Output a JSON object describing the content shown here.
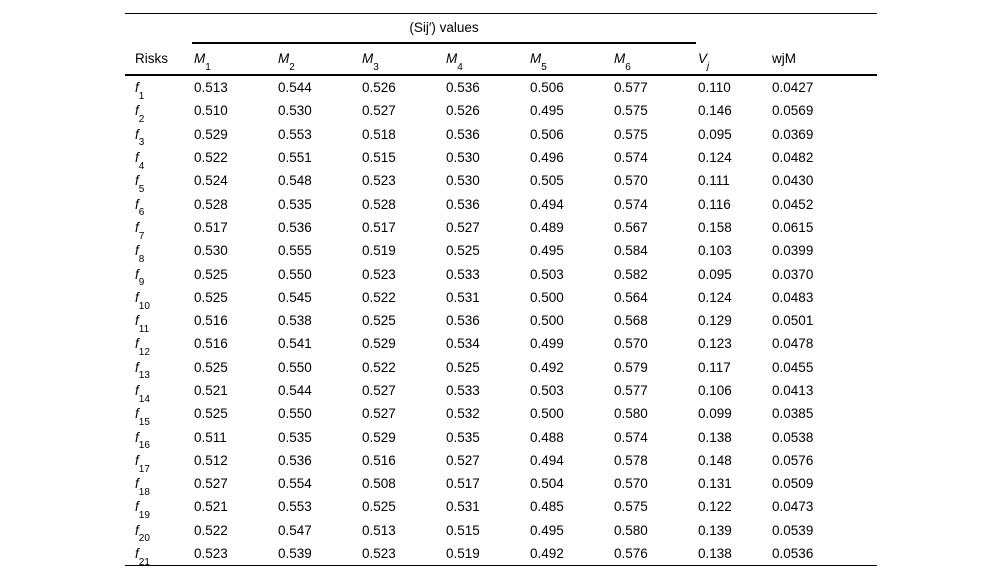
{
  "table": {
    "spanner_title": "(Sij′) values",
    "headers": {
      "risks": "Risks",
      "m_columns": [
        {
          "base": "M",
          "sub": "1"
        },
        {
          "base": "M",
          "sub": "2"
        },
        {
          "base": "M",
          "sub": "3"
        },
        {
          "base": "M",
          "sub": "4"
        },
        {
          "base": "M",
          "sub": "5"
        },
        {
          "base": "M",
          "sub": "6"
        }
      ],
      "v_column": {
        "base": "V",
        "sub": "j"
      },
      "w_column": "wjM"
    },
    "rows": [
      {
        "label": {
          "base": "f",
          "sub": "1"
        },
        "values": [
          "0.513",
          "0.544",
          "0.526",
          "0.536",
          "0.506",
          "0.577",
          "0.110",
          "0.0427"
        ]
      },
      {
        "label": {
          "base": "f",
          "sub": "2"
        },
        "values": [
          "0.510",
          "0.530",
          "0.527",
          "0.526",
          "0.495",
          "0.575",
          "0.146",
          "0.0569"
        ]
      },
      {
        "label": {
          "base": "f",
          "sub": "3"
        },
        "values": [
          "0.529",
          "0.553",
          "0.518",
          "0.536",
          "0.506",
          "0.575",
          "0.095",
          "0.0369"
        ]
      },
      {
        "label": {
          "base": "f",
          "sub": "4"
        },
        "values": [
          "0.522",
          "0.551",
          "0.515",
          "0.530",
          "0.496",
          "0.574",
          "0.124",
          "0.0482"
        ]
      },
      {
        "label": {
          "base": "f",
          "sub": "5"
        },
        "values": [
          "0.524",
          "0.548",
          "0.523",
          "0.530",
          "0.505",
          "0.570",
          "0.111",
          "0.0430"
        ]
      },
      {
        "label": {
          "base": "f",
          "sub": "6"
        },
        "values": [
          "0.528",
          "0.535",
          "0.528",
          "0.536",
          "0.494",
          "0.574",
          "0.116",
          "0.0452"
        ]
      },
      {
        "label": {
          "base": "f",
          "sub": "7"
        },
        "values": [
          "0.517",
          "0.536",
          "0.517",
          "0.527",
          "0.489",
          "0.567",
          "0.158",
          "0.0615"
        ]
      },
      {
        "label": {
          "base": "f",
          "sub": "8"
        },
        "values": [
          "0.530",
          "0.555",
          "0.519",
          "0.525",
          "0.495",
          "0.584",
          "0.103",
          "0.0399"
        ]
      },
      {
        "label": {
          "base": "f",
          "sub": "9"
        },
        "values": [
          "0.525",
          "0.550",
          "0.523",
          "0.533",
          "0.503",
          "0.582",
          "0.095",
          "0.0370"
        ]
      },
      {
        "label": {
          "base": "f",
          "sub": "10"
        },
        "values": [
          "0.525",
          "0.545",
          "0.522",
          "0.531",
          "0.500",
          "0.564",
          "0.124",
          "0.0483"
        ]
      },
      {
        "label": {
          "base": "f",
          "sub": "11"
        },
        "values": [
          "0.516",
          "0.538",
          "0.525",
          "0.536",
          "0.500",
          "0.568",
          "0.129",
          "0.0501"
        ]
      },
      {
        "label": {
          "base": "f",
          "sub": "12"
        },
        "values": [
          "0.516",
          "0.541",
          "0.529",
          "0.534",
          "0.499",
          "0.570",
          "0.123",
          "0.0478"
        ]
      },
      {
        "label": {
          "base": "f",
          "sub": "13"
        },
        "values": [
          "0.525",
          "0.550",
          "0.522",
          "0.525",
          "0.492",
          "0.579",
          "0.117",
          "0.0455"
        ]
      },
      {
        "label": {
          "base": "f",
          "sub": "14"
        },
        "values": [
          "0.521",
          "0.544",
          "0.527",
          "0.533",
          "0.503",
          "0.577",
          "0.106",
          "0.0413"
        ]
      },
      {
        "label": {
          "base": "f",
          "sub": "15"
        },
        "values": [
          "0.525",
          "0.550",
          "0.527",
          "0.532",
          "0.500",
          "0.580",
          "0.099",
          "0.0385"
        ]
      },
      {
        "label": {
          "base": "f",
          "sub": "16"
        },
        "values": [
          "0.511",
          "0.535",
          "0.529",
          "0.535",
          "0.488",
          "0.574",
          "0.138",
          "0.0538"
        ]
      },
      {
        "label": {
          "base": "f",
          "sub": "17"
        },
        "values": [
          "0.512",
          "0.536",
          "0.516",
          "0.527",
          "0.494",
          "0.578",
          "0.148",
          "0.0576"
        ]
      },
      {
        "label": {
          "base": "f",
          "sub": "18"
        },
        "values": [
          "0.527",
          "0.554",
          "0.508",
          "0.517",
          "0.504",
          "0.570",
          "0.131",
          "0.0509"
        ]
      },
      {
        "label": {
          "base": "f",
          "sub": "19"
        },
        "values": [
          "0.521",
          "0.553",
          "0.525",
          "0.531",
          "0.485",
          "0.575",
          "0.122",
          "0.0473"
        ]
      },
      {
        "label": {
          "base": "f",
          "sub": "20"
        },
        "values": [
          "0.522",
          "0.547",
          "0.513",
          "0.515",
          "0.495",
          "0.580",
          "0.139",
          "0.0539"
        ]
      },
      {
        "label": {
          "base": "f",
          "sub": "21"
        },
        "values": [
          "0.523",
          "0.539",
          "0.523",
          "0.519",
          "0.492",
          "0.576",
          "0.138",
          "0.0536"
        ]
      }
    ]
  }
}
